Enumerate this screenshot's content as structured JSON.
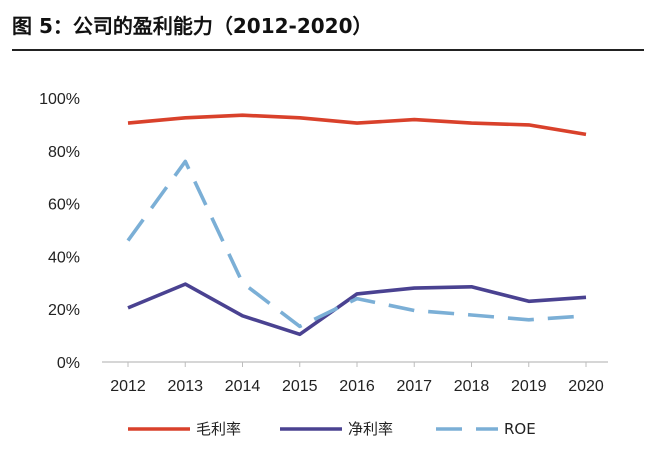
{
  "figure_title": "图 5：公司的盈利能力（2012-2020）",
  "chart_data": {
    "type": "line",
    "title": "",
    "xlabel": "",
    "ylabel": "",
    "categories": [
      "2012",
      "2013",
      "2014",
      "2015",
      "2016",
      "2017",
      "2018",
      "2019",
      "2020"
    ],
    "ylim": [
      0,
      100
    ],
    "yticks": [
      0,
      20,
      40,
      60,
      80,
      100
    ],
    "ytick_labels": [
      "0%",
      "20%",
      "40%",
      "60%",
      "80%",
      "100%"
    ],
    "grid": false,
    "legend_position": "bottom",
    "series": [
      {
        "name": "毛利率",
        "color": "#d9412b",
        "style": "solid",
        "values": [
          90.5,
          92.5,
          93.5,
          92.5,
          90.5,
          91.8,
          90.5,
          89.8,
          86.2
        ]
      },
      {
        "name": "净利率",
        "color": "#4a4291",
        "style": "solid",
        "values": [
          20.5,
          29.5,
          17.5,
          10.5,
          25.8,
          28.0,
          28.5,
          23.0,
          24.5
        ]
      },
      {
        "name": "ROE",
        "color": "#7bafd6",
        "style": "dashed",
        "values": [
          46,
          76,
          30,
          13.5,
          24.0,
          19.5,
          17.8,
          16.0,
          17.5
        ]
      }
    ]
  }
}
